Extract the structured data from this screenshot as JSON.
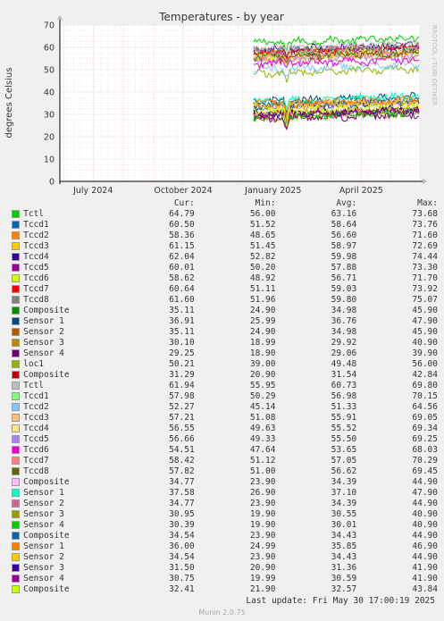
{
  "chart_data": {
    "type": "line",
    "title": "Temperatures - by year",
    "ylabel": "degrees Celsius",
    "ylim": [
      0,
      70
    ],
    "yticks": [
      0,
      10,
      20,
      30,
      40,
      50,
      60,
      70
    ],
    "xlim": [
      "2024-05-28",
      "2025-05-30"
    ],
    "xticks": [
      {
        "label": "July 2024",
        "date": "2024-07-01"
      },
      {
        "label": "October 2024",
        "date": "2024-10-01"
      },
      {
        "label": "January 2025",
        "date": "2025-01-01"
      },
      {
        "label": "April 2025",
        "date": "2025-04-01"
      }
    ],
    "data_start": "2024-12-12",
    "grid": true,
    "watermark": "RRDTOOL / TOBI OETIKER",
    "legend_headers": [
      "Cur:",
      "Min:",
      "Avg:",
      "Max:"
    ],
    "series": [
      {
        "name": "Tctl",
        "color": "#00cc00",
        "cur": "64.79",
        "min": "56.00",
        "avg": "63.16",
        "max": "73.68"
      },
      {
        "name": "Tccd1",
        "color": "#0066b3",
        "cur": "60.50",
        "min": "51.52",
        "avg": "58.64",
        "max": "73.76"
      },
      {
        "name": "Tccd2",
        "color": "#ff8000",
        "cur": "58.36",
        "min": "48.65",
        "avg": "56.60",
        "max": "71.60"
      },
      {
        "name": "Tccd3",
        "color": "#ffcc00",
        "cur": "61.15",
        "min": "51.45",
        "avg": "58.97",
        "max": "72.69"
      },
      {
        "name": "Tccd4",
        "color": "#330099",
        "cur": "62.04",
        "min": "52.82",
        "avg": "59.98",
        "max": "74.44"
      },
      {
        "name": "Tccd5",
        "color": "#990099",
        "cur": "60.01",
        "min": "50.20",
        "avg": "57.88",
        "max": "73.30"
      },
      {
        "name": "Tccd6",
        "color": "#ccff00",
        "cur": "58.62",
        "min": "48.92",
        "avg": "56.71",
        "max": "71.70"
      },
      {
        "name": "Tccd7",
        "color": "#ff0000",
        "cur": "60.64",
        "min": "51.11",
        "avg": "59.03",
        "max": "73.92"
      },
      {
        "name": "Tccd8",
        "color": "#808080",
        "cur": "61.60",
        "min": "51.96",
        "avg": "59.80",
        "max": "75.07"
      },
      {
        "name": "Composite",
        "color": "#008f00",
        "cur": "35.11",
        "min": "24.90",
        "avg": "34.98",
        "max": "45.90"
      },
      {
        "name": "Sensor 1",
        "color": "#00487d",
        "cur": "36.91",
        "min": "25.99",
        "avg": "36.76",
        "max": "47.90"
      },
      {
        "name": "Sensor 2",
        "color": "#b35a00",
        "cur": "35.11",
        "min": "24.90",
        "avg": "34.98",
        "max": "45.90"
      },
      {
        "name": "Sensor 3",
        "color": "#b38f00",
        "cur": "30.10",
        "min": "18.99",
        "avg": "29.92",
        "max": "40.90"
      },
      {
        "name": "Sensor 4",
        "color": "#6b006b",
        "cur": "29.25",
        "min": "18.90",
        "avg": "29.06",
        "max": "39.90"
      },
      {
        "name": "loc1",
        "color": "#8fb300",
        "cur": "50.21",
        "min": "39.00",
        "avg": "49.48",
        "max": "56.00"
      },
      {
        "name": "Composite",
        "color": "#b30000",
        "cur": "31.29",
        "min": "20.90",
        "avg": "31.54",
        "max": "42.84"
      },
      {
        "name": "Tctl",
        "color": "#bebebe",
        "cur": "61.94",
        "min": "55.95",
        "avg": "60.73",
        "max": "69.80"
      },
      {
        "name": "Tccd1",
        "color": "#80ff80",
        "cur": "57.98",
        "min": "50.29",
        "avg": "56.98",
        "max": "70.15"
      },
      {
        "name": "Tccd2",
        "color": "#80c9ff",
        "cur": "52.27",
        "min": "45.14",
        "avg": "51.33",
        "max": "64.56"
      },
      {
        "name": "Tccd3",
        "color": "#ffc080",
        "cur": "57.21",
        "min": "51.08",
        "avg": "55.91",
        "max": "69.05"
      },
      {
        "name": "Tccd4",
        "color": "#ffe680",
        "cur": "56.55",
        "min": "49.63",
        "avg": "55.52",
        "max": "69.34"
      },
      {
        "name": "Tccd5",
        "color": "#aa80ff",
        "cur": "56.66",
        "min": "49.33",
        "avg": "55.50",
        "max": "69.25"
      },
      {
        "name": "Tccd6",
        "color": "#ee00cc",
        "cur": "54.51",
        "min": "47.64",
        "avg": "53.65",
        "max": "68.03"
      },
      {
        "name": "Tccd7",
        "color": "#ff8080",
        "cur": "58.42",
        "min": "51.12",
        "avg": "57.05",
        "max": "70.29"
      },
      {
        "name": "Tccd8",
        "color": "#666600",
        "cur": "57.82",
        "min": "51.00",
        "avg": "56.62",
        "max": "69.45"
      },
      {
        "name": "Composite",
        "color": "#ffbfff",
        "cur": "34.77",
        "min": "23.90",
        "avg": "34.39",
        "max": "44.90"
      },
      {
        "name": "Sensor 1",
        "color": "#00ffcc",
        "cur": "37.58",
        "min": "26.90",
        "avg": "37.10",
        "max": "47.90"
      },
      {
        "name": "Sensor 2",
        "color": "#cc6699",
        "cur": "34.77",
        "min": "23.90",
        "avg": "34.39",
        "max": "44.90"
      },
      {
        "name": "Sensor 3",
        "color": "#999900",
        "cur": "30.95",
        "min": "19.90",
        "avg": "30.55",
        "max": "40.90"
      },
      {
        "name": "Sensor 4",
        "color": "#00cc00",
        "cur": "30.39",
        "min": "19.90",
        "avg": "30.01",
        "max": "40.90"
      },
      {
        "name": "Composite",
        "color": "#0066b3",
        "cur": "34.54",
        "min": "23.90",
        "avg": "34.43",
        "max": "44.90"
      },
      {
        "name": "Sensor 1",
        "color": "#ff8000",
        "cur": "36.00",
        "min": "24.99",
        "avg": "35.85",
        "max": "46.90"
      },
      {
        "name": "Sensor 2",
        "color": "#ffcc00",
        "cur": "34.54",
        "min": "23.90",
        "avg": "34.43",
        "max": "44.90"
      },
      {
        "name": "Sensor 3",
        "color": "#330099",
        "cur": "31.50",
        "min": "20.90",
        "avg": "31.36",
        "max": "41.90"
      },
      {
        "name": "Sensor 4",
        "color": "#990099",
        "cur": "30.75",
        "min": "19.99",
        "avg": "30.59",
        "max": "41.90"
      },
      {
        "name": "Composite",
        "color": "#ccff00",
        "cur": "32.41",
        "min": "21.90",
        "avg": "32.57",
        "max": "43.84"
      }
    ]
  },
  "footer": {
    "last_update": "Last update: Fri May 30 17:00:19 2025",
    "version": "Munin 2.0.75"
  }
}
